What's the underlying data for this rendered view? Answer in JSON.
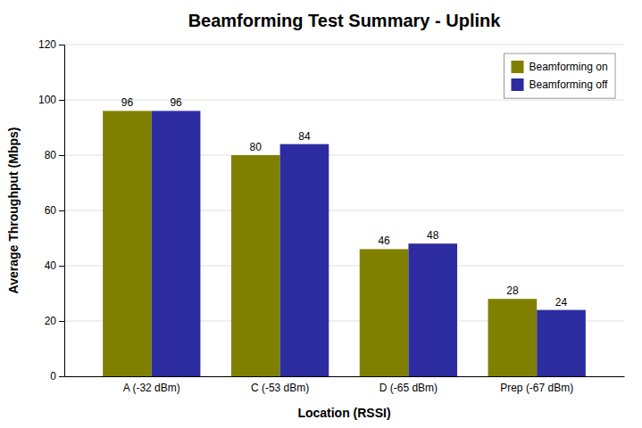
{
  "chart_data": {
    "type": "bar",
    "title": "Beamforming Test Summary - Uplink",
    "xlabel": "Location (RSSI)",
    "ylabel": "Average Throughput (Mbps)",
    "categories": [
      "A (-32 dBm)",
      "C (-53 dBm)",
      "D (-65 dBm)",
      "Prep (-67 dBm)"
    ],
    "series": [
      {
        "name": "Beamforming on",
        "color": "#808000",
        "values": [
          96,
          80,
          46,
          28
        ]
      },
      {
        "name": "Beamforming off",
        "color": "#2C2CA0",
        "values": [
          96,
          84,
          48,
          24
        ]
      }
    ],
    "ylim": [
      0,
      120
    ],
    "yticks": [
      0,
      20,
      40,
      60,
      80,
      100,
      120
    ],
    "grid": true,
    "legend": "upper right",
    "data_labels": true
  }
}
